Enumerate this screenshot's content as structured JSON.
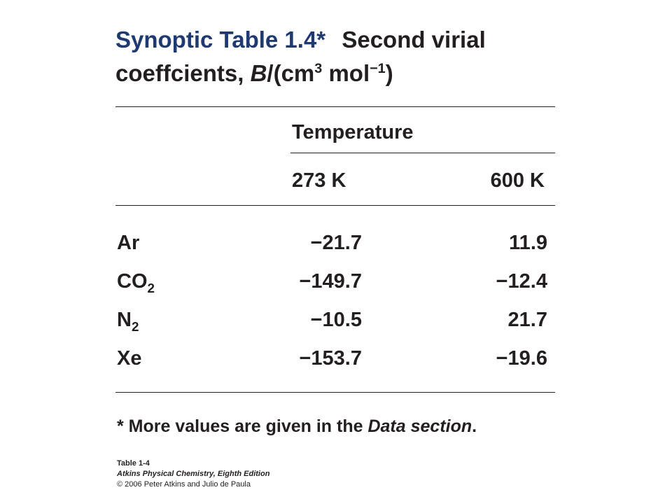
{
  "title": {
    "label": "Synoptic Table 1.4*",
    "lines": [
      [
        {
          "text": "Second virial"
        }
      ],
      [
        {
          "text": "coeffcients, "
        },
        {
          "text": "B",
          "style": "italic"
        },
        {
          "text": "/(cm"
        },
        {
          "text": "3",
          "style": "sup"
        },
        {
          "text": " mol"
        },
        {
          "text": "−1",
          "style": "sup"
        },
        {
          "text": ")"
        }
      ]
    ]
  },
  "table": {
    "column_group": "Temperature",
    "columns": [
      "273 K",
      "600 K"
    ],
    "rows": [
      {
        "name": [
          {
            "text": "Ar"
          }
        ],
        "values": [
          "−21.7",
          "11.9"
        ]
      },
      {
        "name": [
          {
            "text": "CO"
          },
          {
            "text": "2",
            "style": "sub"
          }
        ],
        "values": [
          "−149.7",
          "−12.4"
        ]
      },
      {
        "name": [
          {
            "text": "N"
          },
          {
            "text": "2",
            "style": "sub"
          }
        ],
        "values": [
          "−10.5",
          "21.7"
        ]
      },
      {
        "name": [
          {
            "text": "Xe"
          }
        ],
        "values": [
          "−153.7",
          "−19.6"
        ]
      }
    ]
  },
  "footnote": [
    {
      "text": "* More values are given in the "
    },
    {
      "text": "Data section",
      "style": "italic"
    },
    {
      "text": "."
    }
  ],
  "credit": {
    "label": "Table 1-4",
    "book": "Atkins Physical Chemistry, Eighth Edition",
    "copyright": "© 2006 Peter Atkins and Julio de Paula"
  }
}
